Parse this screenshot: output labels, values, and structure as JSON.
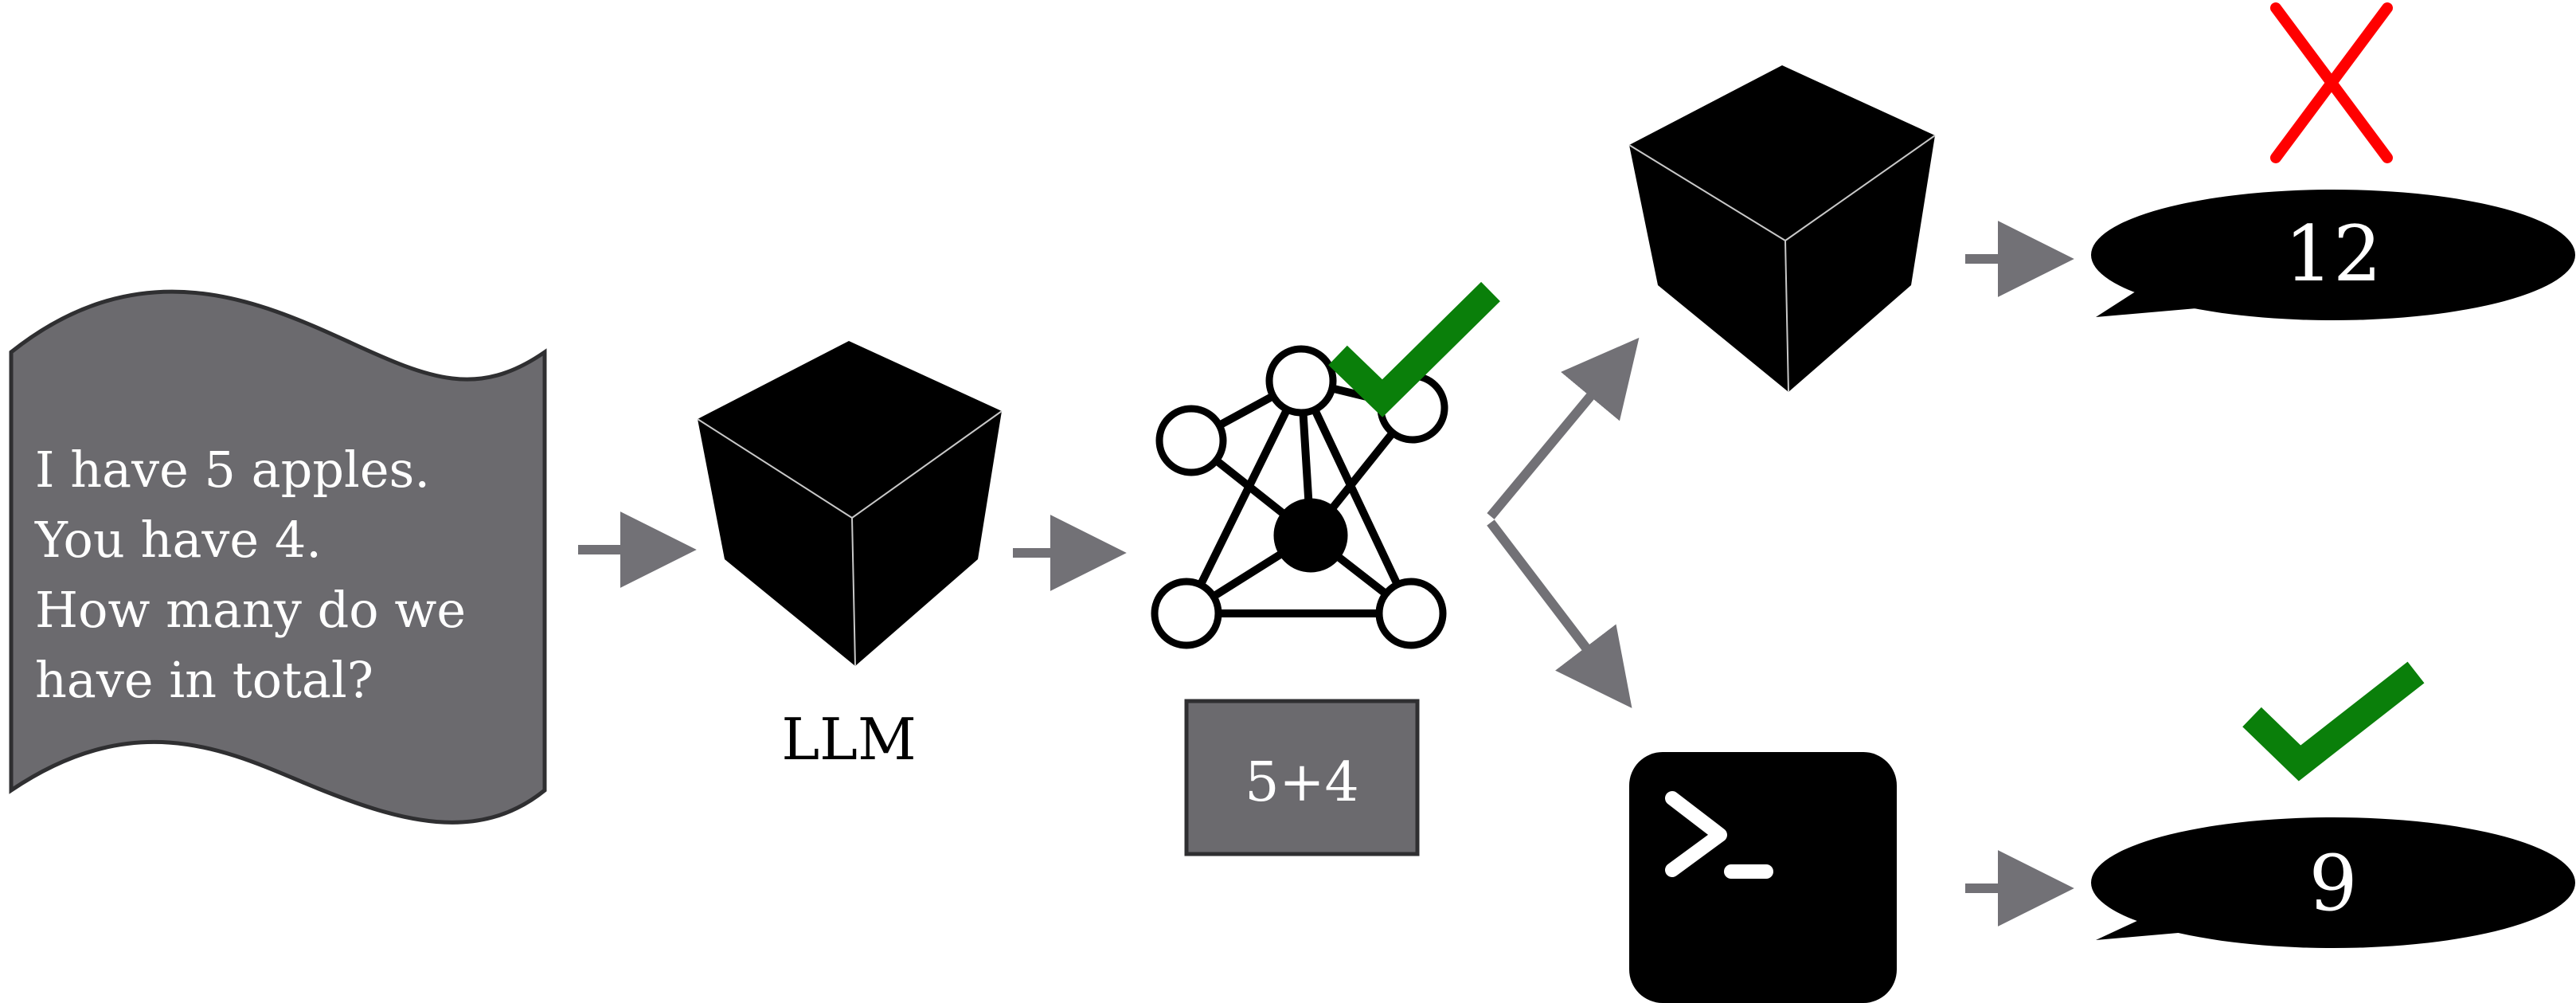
{
  "input": {
    "lines": [
      "I have 5 apples.",
      "You have 4.",
      "How many do we",
      "have in total?"
    ]
  },
  "llm": {
    "label": "LLM"
  },
  "expression": {
    "text": "5+4"
  },
  "outcomes": {
    "without_tool": {
      "answer": "12",
      "verdict_icon": "red-cross-icon"
    },
    "with_tool": {
      "answer": "9",
      "verdict_icon": "green-check-icon"
    }
  },
  "colors": {
    "arrow": "#727176",
    "input_fill": "#6b6a6e",
    "expression_fill": "#6b6a6e",
    "check": "#0a7f0a",
    "cross": "#ff0000",
    "black": "#000000"
  }
}
